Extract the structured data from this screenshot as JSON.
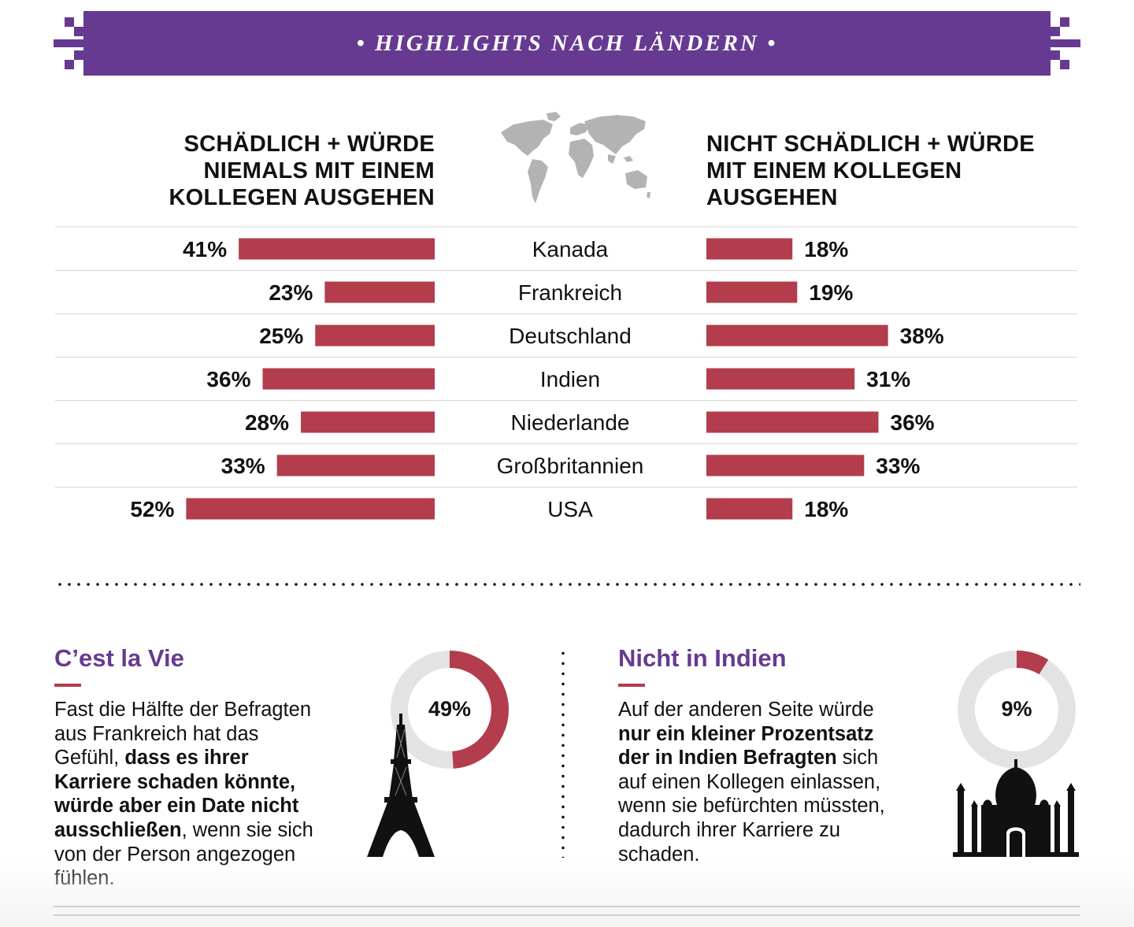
{
  "header": {
    "title": "• HIGHLIGHTS NACH LÄNDERN •",
    "color": "#663a91"
  },
  "left_heading": {
    "line1": "SCHÄDLICH + WÜRDE",
    "line2": "NIEMALS MIT EINEM",
    "line3": "KOLLEGEN AUSGEHEN"
  },
  "right_heading": {
    "line1": "NICHT SCHÄDLICH + WÜRDE",
    "line2": "MIT EINEM KOLLEGEN",
    "line3": "AUSGEHEN"
  },
  "map_icon": "world-map-icon",
  "chart_data": {
    "type": "bar",
    "orientation": "horizontal",
    "layout": "butterfly",
    "bar_color": "#b33d4c",
    "categories": [
      "Kanada",
      "Frankreich",
      "Deutschland",
      "Indien",
      "Niederlande",
      "Großbritannien",
      "USA"
    ],
    "series": [
      {
        "name": "SCHÄDLICH + WÜRDE NIEMALS MIT EINEM KOLLEGEN AUSGEHEN",
        "values": [
          41,
          23,
          25,
          36,
          28,
          33,
          52
        ]
      },
      {
        "name": "NICHT SCHÄDLICH + WÜRDE MIT EINEM KOLLEGEN AUSGEHEN",
        "values": [
          18,
          19,
          38,
          31,
          36,
          33,
          18
        ]
      }
    ],
    "value_suffix": "%"
  },
  "panel_left": {
    "title": "C’est la Vie",
    "lines": [
      {
        "a": "Fast die Hälfte der Befragten",
        "b": ""
      },
      {
        "a": "aus Frankreich hat das",
        "b": ""
      },
      {
        "a": "Gefühl, ",
        "b": "dass es ihrer"
      },
      {
        "a": "",
        "b": "Karriere schaden könnte,"
      },
      {
        "a": "",
        "b": "würde aber ein Date nicht"
      },
      {
        "a": "",
        "b": "ausschließen",
        "c": ", wenn sie sich"
      },
      {
        "a": "von der Person angezogen",
        "b": ""
      },
      {
        "a": "fühlen.",
        "b": ""
      }
    ],
    "donut_value": 49,
    "donut_label": "49%",
    "icon": "eiffel-tower-icon"
  },
  "panel_right": {
    "title": "Nicht in Indien",
    "lines": [
      {
        "a": "Auf der anderen Seite würde",
        "b": ""
      },
      {
        "a": "",
        "b": "nur ein kleiner Prozentsatz"
      },
      {
        "a": "",
        "b": "der in Indien Befragten",
        "c": " sich"
      },
      {
        "a": "auf einen Kollegen einlassen,",
        "b": ""
      },
      {
        "a": "wenn sie befürchten müssten,",
        "b": ""
      },
      {
        "a": "dadurch ihrer Karriere zu",
        "b": ""
      },
      {
        "a": "schaden.",
        "b": ""
      }
    ],
    "donut_value": 9,
    "donut_label": "9%",
    "icon": "taj-mahal-icon"
  },
  "colors": {
    "accent_purple": "#663a91",
    "bar_red": "#b33d4c",
    "donut_track": "#e3e3e3"
  }
}
